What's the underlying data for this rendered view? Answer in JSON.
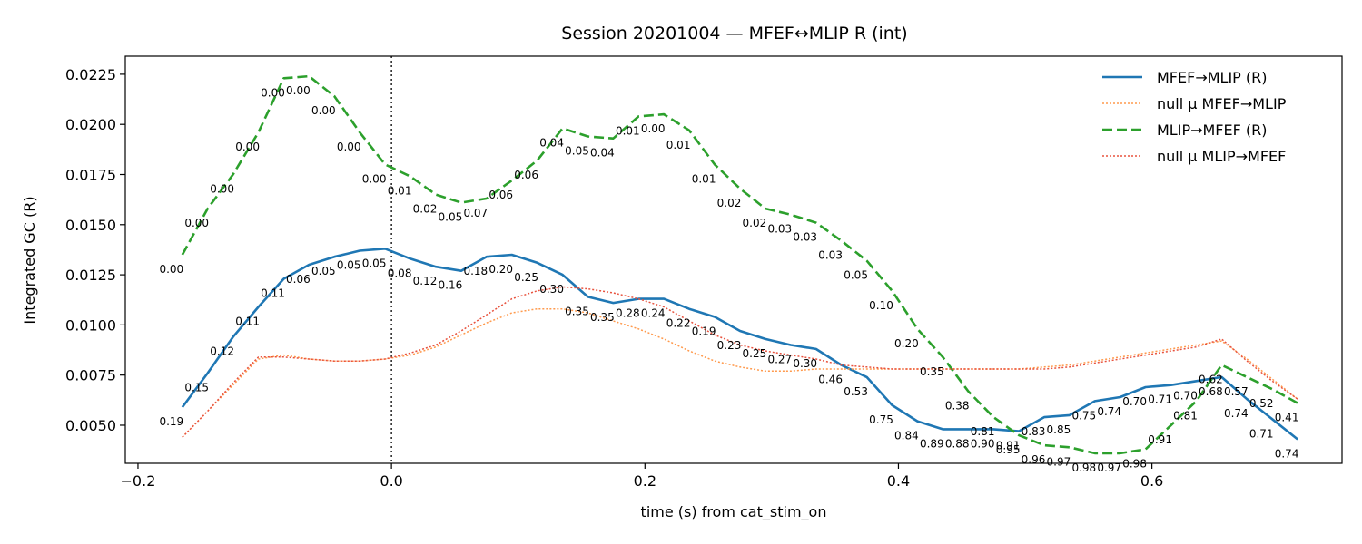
{
  "chart_data": {
    "type": "line",
    "title": "Session 20201004 — MFEF↔MLIP R (int)",
    "xlabel": "time (s) from cat_stim_on",
    "ylabel": "Integrated GC (R)",
    "xlim": [
      -0.21,
      0.75
    ],
    "ylim": [
      0.0031,
      0.0234
    ],
    "xticks": [
      -0.2,
      0.0,
      0.2,
      0.4,
      0.6
    ],
    "xtick_labels": [
      "−0.2",
      "0.0",
      "0.2",
      "0.4",
      "0.6"
    ],
    "yticks": [
      0.005,
      0.0075,
      0.01,
      0.0125,
      0.015,
      0.0175,
      0.02,
      0.0225
    ],
    "ytick_labels": [
      "0.0050",
      "0.0075",
      "0.0100",
      "0.0125",
      "0.0150",
      "0.0175",
      "0.0200",
      "0.0225"
    ],
    "vline_x": 0.0,
    "grid": false,
    "legend_position": "top-right",
    "x": [
      -0.165,
      -0.145,
      -0.125,
      -0.105,
      -0.085,
      -0.065,
      -0.045,
      -0.025,
      -0.005,
      0.015,
      0.035,
      0.055,
      0.075,
      0.095,
      0.115,
      0.135,
      0.155,
      0.175,
      0.195,
      0.215,
      0.235,
      0.255,
      0.275,
      0.295,
      0.315,
      0.335,
      0.355,
      0.375,
      0.395,
      0.415,
      0.435,
      0.455,
      0.475,
      0.495,
      0.515,
      0.535,
      0.555,
      0.575,
      0.595,
      0.615,
      0.635,
      0.655,
      0.675,
      0.695,
      0.715
    ],
    "series": [
      {
        "name": "MFEF→MLIP (R)",
        "color": "#1f77b4",
        "style": "solid",
        "values": [
          0.0059,
          0.0076,
          0.0094,
          0.0109,
          0.0123,
          0.013,
          0.0134,
          0.0137,
          0.0138,
          0.0133,
          0.0129,
          0.0127,
          0.0134,
          0.0135,
          0.0131,
          0.0125,
          0.0114,
          0.0111,
          0.0113,
          0.0113,
          0.0108,
          0.0104,
          0.0097,
          0.0093,
          0.009,
          0.0088,
          0.008,
          0.0074,
          0.006,
          0.0052,
          0.0048,
          0.0048,
          0.0048,
          0.0047,
          0.0054,
          0.0055,
          0.0062,
          0.0064,
          0.0069,
          0.007,
          0.0072,
          0.0074,
          0.0063,
          0.0053,
          0.0043
        ],
        "p_labels": [
          "0.19",
          "0.15",
          "0.12",
          "0.11",
          "0.11",
          "0.06",
          "0.05",
          "0.05",
          "0.05",
          "0.08",
          "0.12",
          "0.16",
          "0.18",
          "0.20",
          "0.25",
          "0.30",
          "0.35",
          "0.35",
          "0.28",
          "0.24",
          "0.22",
          "0.19",
          "0.23",
          "0.25",
          "0.27",
          "0.30",
          "0.46",
          "0.53",
          "0.75",
          "0.84",
          "0.89",
          "0.88",
          "0.90",
          "0.91",
          "0.83",
          "0.85",
          "0.75",
          "0.74",
          "0.70",
          "0.71",
          "0.70",
          "0.68",
          "0.74",
          "0.71",
          "0.74"
        ]
      },
      {
        "name": "null μ MFEF→MLIP",
        "color": "#ff9a4d",
        "style": "dotted",
        "values": [
          0.0044,
          0.0057,
          0.007,
          0.0083,
          0.0085,
          0.0083,
          0.0082,
          0.0082,
          0.0083,
          0.0085,
          0.0089,
          0.0095,
          0.0101,
          0.0106,
          0.0108,
          0.0108,
          0.0106,
          0.0102,
          0.0098,
          0.0093,
          0.0087,
          0.0082,
          0.0079,
          0.0077,
          0.0077,
          0.0078,
          0.0078,
          0.0078,
          0.0078,
          0.0078,
          0.0078,
          0.0078,
          0.0078,
          0.0078,
          0.0079,
          0.008,
          0.0082,
          0.0084,
          0.0086,
          0.0088,
          0.009,
          0.0092,
          0.0083,
          0.0073,
          0.0063
        ]
      },
      {
        "name": "MLIP→MFEF (R)",
        "color": "#2ca02c",
        "style": "dashed",
        "values": [
          0.0135,
          0.0158,
          0.0175,
          0.0196,
          0.0223,
          0.0224,
          0.0214,
          0.0196,
          0.018,
          0.0174,
          0.0165,
          0.0161,
          0.0163,
          0.0172,
          0.0182,
          0.0198,
          0.0194,
          0.0193,
          0.0204,
          0.0205,
          0.0197,
          0.018,
          0.0168,
          0.0158,
          0.0155,
          0.0151,
          0.0142,
          0.0132,
          0.0117,
          0.0098,
          0.0084,
          0.0067,
          0.0054,
          0.0045,
          0.004,
          0.0039,
          0.0036,
          0.0036,
          0.0038,
          0.005,
          0.0062,
          0.008,
          0.0074,
          0.0068,
          0.0061
        ],
        "p_labels": [
          "0.00",
          "0.00",
          "0.00",
          "0.00",
          "0.00",
          "0.00",
          "0.00",
          "0.00",
          "0.00",
          "0.01",
          "0.02",
          "0.05",
          "0.07",
          "0.06",
          "0.06",
          "0.04",
          "0.05",
          "0.04",
          "0.01",
          "0.00",
          "0.01",
          "0.01",
          "0.02",
          "0.02",
          "0.03",
          "0.03",
          "0.03",
          "0.05",
          "0.10",
          "0.20",
          "0.35",
          "0.38",
          "0.81",
          "0.95",
          "0.96",
          "0.97",
          "0.98",
          "0.97",
          "0.98",
          "0.91",
          "0.81",
          "0.62",
          "0.57",
          "0.52",
          "0.41"
        ]
      },
      {
        "name": "null μ MLIP→MFEF",
        "color": "#e8533f",
        "style": "dotted",
        "values": [
          0.0044,
          0.0057,
          0.0071,
          0.0084,
          0.0084,
          0.0083,
          0.0082,
          0.0082,
          0.0083,
          0.0086,
          0.009,
          0.0097,
          0.0105,
          0.0113,
          0.0117,
          0.0119,
          0.0118,
          0.0116,
          0.0113,
          0.0109,
          0.0102,
          0.0095,
          0.009,
          0.0087,
          0.0085,
          0.0083,
          0.008,
          0.0079,
          0.0078,
          0.0078,
          0.0078,
          0.0078,
          0.0078,
          0.0078,
          0.0078,
          0.0079,
          0.0081,
          0.0083,
          0.0085,
          0.0087,
          0.0089,
          0.0093,
          0.0082,
          0.0072,
          0.0063
        ]
      }
    ]
  }
}
